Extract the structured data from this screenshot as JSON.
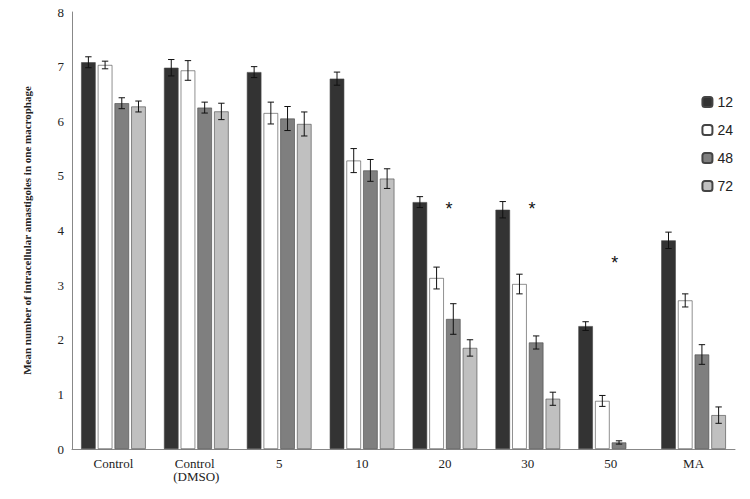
{
  "chart_data": {
    "type": "bar",
    "y_label": "Mean number of intracellular amastigoles in one macrophage",
    "categories": [
      "Control",
      "Control (DMSO)",
      "5",
      "10",
      "20",
      "30",
      "50",
      "MA"
    ],
    "series": [
      {
        "name": "12",
        "color": "#333333",
        "values": [
          7.08,
          6.98,
          6.9,
          6.78,
          4.52,
          4.38,
          2.25,
          3.82
        ],
        "errors": [
          0.1,
          0.15,
          0.1,
          0.12,
          0.1,
          0.15,
          0.08,
          0.15
        ]
      },
      {
        "name": "24",
        "color": "#ffffff",
        "values": [
          7.03,
          6.93,
          6.15,
          5.28,
          3.13,
          3.02,
          0.88,
          2.72
        ],
        "errors": [
          0.07,
          0.18,
          0.2,
          0.22,
          0.2,
          0.18,
          0.1,
          0.12
        ]
      },
      {
        "name": "48",
        "color": "#7f7f7f",
        "values": [
          6.33,
          6.25,
          6.05,
          5.1,
          2.38,
          1.95,
          0.12,
          1.73
        ],
        "errors": [
          0.1,
          0.1,
          0.22,
          0.2,
          0.28,
          0.12,
          0.03,
          0.18
        ]
      },
      {
        "name": "72",
        "color": "#c0c0c0",
        "values": [
          6.27,
          6.18,
          5.95,
          4.95,
          1.85,
          0.92,
          null,
          0.62
        ],
        "errors": [
          0.1,
          0.15,
          0.22,
          0.18,
          0.15,
          0.12,
          null,
          0.15
        ]
      }
    ],
    "annotations": [
      {
        "text": "*",
        "category": "20",
        "y": 4.4
      },
      {
        "text": "*",
        "category": "30",
        "y": 4.4
      },
      {
        "text": "*",
        "category": "50",
        "y": 3.4
      }
    ],
    "ylim": [
      0,
      8
    ],
    "yticks": [
      0,
      1,
      2,
      3,
      4,
      5,
      6,
      7,
      8
    ],
    "grid": false,
    "legend": "right"
  }
}
